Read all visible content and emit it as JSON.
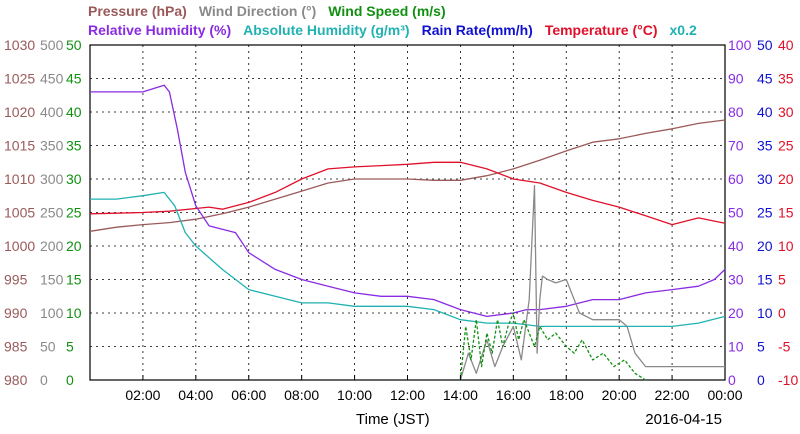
{
  "chart_data": {
    "type": "line",
    "date": "2016-04-15",
    "xlabel": "Time (JST)",
    "x_ticks": [
      "02:00",
      "04:00",
      "06:00",
      "08:00",
      "10:00",
      "12:00",
      "14:00",
      "16:00",
      "18:00",
      "20:00",
      "22:00",
      "00:00"
    ],
    "grid": true,
    "legend_row1": [
      {
        "key": "pressure",
        "text": "Pressure (hPa)",
        "color": "#9a5a5a"
      },
      {
        "key": "wind_dir",
        "text": "Wind Direction (°)",
        "color": "#8a8a8a"
      },
      {
        "key": "wind_speed",
        "text": "Wind Speed (m/s)",
        "color": "#129012"
      }
    ],
    "legend_row2": [
      {
        "key": "rh",
        "text": "Relative Humidity (%)",
        "color": "#8a2be2"
      },
      {
        "key": "ah",
        "text": "Absolute Humidity (g/m³)",
        "color": "#20b2b2"
      },
      {
        "key": "rain",
        "text": "Rain Rate(mm/h)",
        "color": "#1010d0"
      },
      {
        "key": "temp",
        "text": "Temperature (°C)",
        "color": "#e0102a"
      },
      {
        "key": "ah_scale",
        "text": "x0.2",
        "color": "#20b2b2"
      }
    ],
    "axes": {
      "pressure": {
        "ticks": [
          "1030",
          "1025",
          "1020",
          "1015",
          "1010",
          "1005",
          "1000",
          "995",
          "990",
          "985",
          "980"
        ],
        "range": [
          980,
          1030
        ],
        "color": "#9a5a5a"
      },
      "wind_dir": {
        "ticks": [
          "500",
          "450",
          "400",
          "350",
          "300",
          "250",
          "200",
          "150",
          "100",
          "50",
          "0"
        ],
        "range": [
          0,
          500
        ],
        "color": "#8a8a8a"
      },
      "wind_speed": {
        "ticks": [
          "50",
          "45",
          "40",
          "35",
          "30",
          "25",
          "20",
          "15",
          "10",
          "5",
          "0"
        ],
        "range": [
          0,
          50
        ],
        "color": "#129012"
      },
      "rh": {
        "ticks": [
          "100",
          "90",
          "80",
          "70",
          "60",
          "50",
          "40",
          "30",
          "20",
          "10",
          "0"
        ],
        "range": [
          0,
          100
        ],
        "color": "#8a2be2"
      },
      "rain": {
        "ticks": [
          "50",
          "45",
          "40",
          "35",
          "30",
          "25",
          "20",
          "15",
          "10",
          "5",
          "0"
        ],
        "range": [
          0,
          50
        ],
        "color": "#1010d0"
      },
      "temp": {
        "ticks": [
          "40",
          "35",
          "30",
          "25",
          "20",
          "15",
          "10",
          "5",
          "0",
          "-5",
          "-10"
        ],
        "range": [
          -10,
          40
        ],
        "color": "#e0102a"
      }
    },
    "series": [
      {
        "name": "Pressure (hPa)",
        "axis": "pressure",
        "color": "#9a5a5a",
        "x": [
          0,
          1,
          2,
          3,
          4,
          5,
          6,
          7,
          8,
          9,
          10,
          11,
          12,
          13,
          14,
          15,
          16,
          17,
          18,
          19,
          20,
          21,
          22,
          23,
          24
        ],
        "y": [
          1002.2,
          1002.8,
          1003.2,
          1003.5,
          1004.0,
          1004.8,
          1005.8,
          1007.0,
          1008.2,
          1009.4,
          1010.0,
          1010.0,
          1010.0,
          1009.8,
          1009.8,
          1010.5,
          1011.5,
          1012.8,
          1014.2,
          1015.5,
          1016.0,
          1016.8,
          1017.5,
          1018.3,
          1018.8
        ],
        "dash": false
      },
      {
        "name": "Temperature (°C)",
        "axis": "temp",
        "color": "#e0102a",
        "x": [
          0,
          1,
          2,
          3,
          4,
          4.5,
          5,
          6,
          7,
          8,
          9,
          10,
          11,
          12,
          13,
          14,
          15,
          16,
          17,
          18,
          19,
          20,
          21,
          22,
          23,
          24
        ],
        "y": [
          14.8,
          14.9,
          15.0,
          15.2,
          15.6,
          15.8,
          15.5,
          16.5,
          18.0,
          20.0,
          21.5,
          21.8,
          22.0,
          22.2,
          22.5,
          22.5,
          21.5,
          20.0,
          19.4,
          18.0,
          16.8,
          15.8,
          14.5,
          13.2,
          14.2,
          13.4
        ],
        "dash": false
      },
      {
        "name": "Relative Humidity (%)",
        "axis": "rh",
        "color": "#8a2be2",
        "x": [
          0,
          1,
          2,
          2.8,
          3.0,
          3.3,
          3.6,
          4.0,
          4.5,
          5,
          5.5,
          6,
          7,
          8,
          9,
          10,
          11,
          12,
          13,
          14,
          15,
          16,
          16.5,
          17,
          18,
          19,
          20,
          21,
          22,
          23,
          23.6,
          24
        ],
        "y": [
          86,
          86,
          86,
          88,
          86,
          75,
          62,
          52,
          46,
          45,
          44,
          38,
          33,
          30,
          28,
          26,
          25,
          25,
          24,
          21,
          19,
          20,
          21,
          21,
          22,
          24,
          24,
          26,
          27,
          28,
          30,
          33
        ],
        "dash": false
      },
      {
        "name": "Absolute Humidity (g/m³)",
        "axis": "rh",
        "color": "#20b2b2",
        "x": [
          0,
          1,
          2,
          2.8,
          3.2,
          3.6,
          4,
          5,
          6,
          7,
          8,
          9,
          10,
          11,
          12,
          13,
          14,
          15,
          16,
          17,
          18,
          19,
          20,
          21,
          22,
          23,
          24
        ],
        "y": [
          54,
          54,
          55,
          56,
          52,
          44,
          40,
          33,
          27,
          25,
          23,
          23,
          22,
          22,
          22,
          21,
          18,
          17,
          17,
          16,
          16,
          16,
          16,
          16,
          16,
          17,
          19
        ],
        "dash": false
      },
      {
        "name": "Wind Direction (°)",
        "axis": "wind_dir",
        "color": "#8a8a8a",
        "x": [
          14.0,
          14.3,
          14.6,
          15.0,
          15.3,
          15.6,
          16.0,
          16.3,
          16.6,
          16.8,
          16.9,
          17.0,
          17.1,
          17.3,
          17.6,
          18.0,
          18.5,
          19.0,
          19.5,
          20.0,
          20.3,
          20.6,
          21.0,
          22.0,
          23.0,
          24.0
        ],
        "y": [
          0,
          40,
          10,
          60,
          20,
          50,
          80,
          30,
          120,
          290,
          40,
          120,
          155,
          150,
          145,
          150,
          100,
          90,
          90,
          90,
          80,
          40,
          20,
          20,
          20,
          20
        ],
        "dash": false
      },
      {
        "name": "Wind Speed (m/s)",
        "axis": "wind_speed",
        "color": "#129012",
        "x": [
          14.0,
          14.2,
          14.4,
          14.6,
          14.8,
          15.0,
          15.2,
          15.4,
          15.6,
          15.8,
          16.0,
          16.2,
          16.4,
          16.6,
          16.8,
          17.0,
          17.3,
          17.6,
          18.0,
          18.3,
          18.6,
          19.0,
          19.4,
          19.8,
          20.2,
          20.6,
          21.0
        ],
        "y": [
          0,
          8,
          3,
          9,
          2,
          7,
          4,
          9,
          5,
          8,
          10,
          6,
          9,
          7,
          5,
          8,
          6,
          7,
          5,
          4,
          6,
          3,
          4,
          2,
          3,
          1,
          0
        ],
        "dash": true
      }
    ]
  }
}
